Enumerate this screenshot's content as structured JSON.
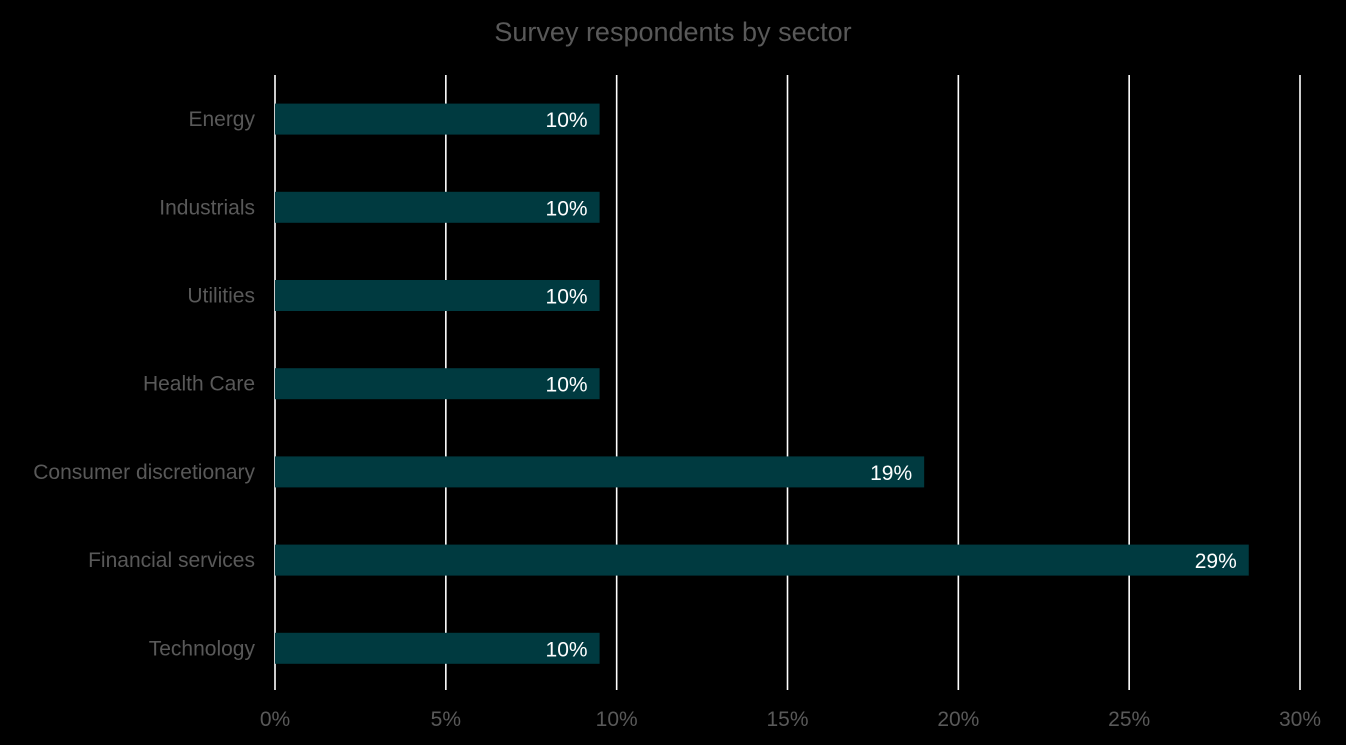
{
  "chart_data": {
    "type": "bar",
    "orientation": "horizontal",
    "title": "Survey respondents by sector",
    "xlabel": "",
    "ylabel": "",
    "categories": [
      "Energy",
      "Industrials",
      "Utilities",
      "Health Care",
      "Consumer discretionary",
      "Financial services",
      "Technology"
    ],
    "values": [
      9.5,
      9.5,
      9.5,
      9.5,
      19.0,
      28.5,
      9.5
    ],
    "data_labels": [
      "10%",
      "10%",
      "10%",
      "10%",
      "19%",
      "29%",
      "10%"
    ],
    "xlim": [
      0,
      30
    ],
    "x_ticks": [
      0,
      5,
      10,
      15,
      20,
      25,
      30
    ],
    "x_tick_labels": [
      "0%",
      "5%",
      "10%",
      "15%",
      "20%",
      "25%",
      "30%"
    ],
    "grid": true,
    "legend": "none",
    "colors": {
      "background": "#000000",
      "bar": "#003a40",
      "gridline": "#ffffff",
      "label_text": "#595959",
      "data_label_text": "#ffffff"
    }
  }
}
